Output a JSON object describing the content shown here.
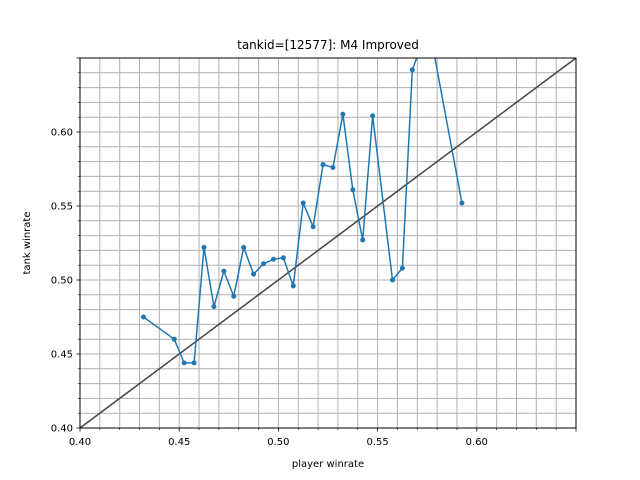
{
  "chart_data": {
    "type": "line",
    "title": "tankid=[12577]: M4 Improved",
    "xlabel": "player winrate",
    "ylabel": "tank winrate",
    "xlim": [
      0.4,
      0.65
    ],
    "ylim": [
      0.4,
      0.65
    ],
    "x_ticks": [
      "0.40",
      "0.45",
      "0.50",
      "0.55",
      "0.60"
    ],
    "y_ticks": [
      "0.40",
      "0.45",
      "0.50",
      "0.55",
      "0.60"
    ],
    "grid": true,
    "minor_grid_step": 0.01,
    "reference_line": {
      "from": [
        0.4,
        0.4
      ],
      "to": [
        0.65,
        0.65
      ],
      "color": "#444444"
    },
    "series": [
      {
        "color": "#1f77b4",
        "x": [
          0.432,
          0.4475,
          0.4525,
          0.4575,
          0.4625,
          0.4675,
          0.4725,
          0.4775,
          0.4825,
          0.4875,
          0.4925,
          0.4975,
          0.5025,
          0.5075,
          0.5125,
          0.5175,
          0.5225,
          0.5275,
          0.5325,
          0.5375,
          0.5425,
          0.5475,
          0.5575,
          0.5625,
          0.5675,
          0.5725,
          0.5775,
          0.5925
        ],
        "y": [
          0.475,
          0.46,
          0.444,
          0.444,
          0.522,
          0.482,
          0.506,
          0.489,
          0.522,
          0.504,
          0.511,
          0.514,
          0.515,
          0.496,
          0.552,
          0.536,
          0.578,
          0.576,
          0.612,
          0.561,
          0.527,
          0.611,
          0.5,
          0.508,
          0.642,
          0.66,
          0.66,
          0.552
        ]
      }
    ]
  }
}
